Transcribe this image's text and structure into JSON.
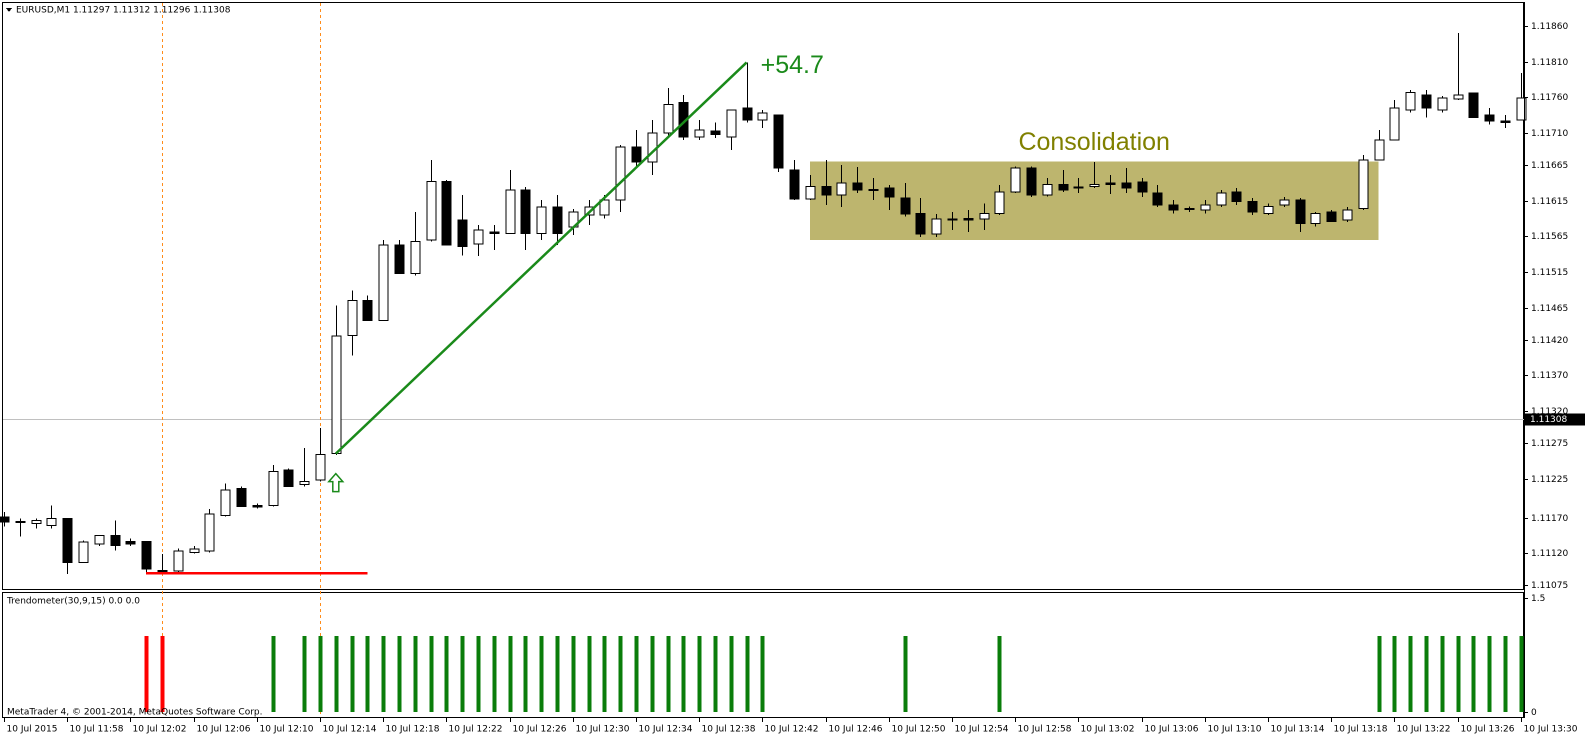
{
  "chart_data": [
    {
      "type": "candlestick",
      "title": "EURUSD,M1  1.11297 1.11312 1.11296 1.11308",
      "categories": [
        "10 Jul 2015",
        null,
        null,
        null,
        "10 Jul 11:58",
        null,
        null,
        null,
        "10 Jul 12:02",
        null,
        null,
        null,
        "10 Jul 12:06",
        null,
        null,
        null,
        "10 Jul 12:10",
        null,
        null,
        null,
        "10 Jul 12:14",
        null,
        null,
        null,
        "10 Jul 12:18",
        null,
        null,
        null,
        "10 Jul 12:22",
        null,
        null,
        null,
        "10 Jul 12:26",
        null,
        null,
        null,
        "10 Jul 12:30",
        null,
        null,
        null,
        "10 Jul 12:34",
        null,
        null,
        null,
        "10 Jul 12:38",
        null,
        null,
        null,
        "10 Jul 12:42",
        null,
        null,
        null,
        "10 Jul 12:46",
        null,
        null,
        null,
        "10 Jul 12:50",
        null,
        null,
        null,
        "10 Jul 12:54",
        null,
        null,
        null,
        "10 Jul 12:58",
        null,
        null,
        null,
        "10 Jul 13:02",
        null,
        null,
        null,
        "10 Jul 13:06",
        null,
        null,
        null,
        "10 Jul 13:10",
        null,
        null,
        null,
        "10 Jul 13:14",
        null,
        null,
        null,
        "10 Jul 13:18",
        null,
        null,
        null,
        "10 Jul 13:22",
        null,
        null,
        null,
        "10 Jul 13:26",
        null,
        null,
        null,
        "10 Jul 13:30"
      ],
      "open": [
        1.11171,
        1.11165,
        1.11162,
        1.11159,
        1.11169,
        1.11107,
        1.11133,
        1.11145,
        1.11137,
        1.11137,
        1.11096,
        1.11095,
        1.11121,
        1.11123,
        1.11173,
        1.11211,
        1.11187,
        1.11187,
        1.11237,
        1.11217,
        1.11223,
        1.1126,
        1.11426,
        1.11475,
        1.11447,
        1.11553,
        1.11513,
        1.1156,
        1.11642,
        1.11588,
        1.11554,
        1.11571,
        1.11569,
        1.1163,
        1.11569,
        1.11606,
        1.11578,
        1.11595,
        1.11595,
        1.11616,
        1.1169,
        1.11669,
        1.1171,
        1.11753,
        1.11704,
        1.11713,
        1.11704,
        1.11745,
        1.11728,
        1.11735,
        1.11658,
        1.11617,
        1.11635,
        1.11623,
        1.1164,
        1.11631,
        1.11633,
        1.11619,
        1.11597,
        1.11568,
        1.11589,
        1.1159,
        1.11589,
        1.11597,
        1.11627,
        1.11661,
        1.11623,
        1.11638,
        1.11634,
        1.11635,
        1.1164,
        1.1164,
        1.11641,
        1.11626,
        1.11609,
        1.11604,
        1.11602,
        1.11609,
        1.11627,
        1.11614,
        1.11597,
        1.11609,
        1.11616,
        1.11583,
        1.11599,
        1.11588,
        1.11604,
        1.11672,
        1.117,
        1.11742,
        1.11763,
        1.11742,
        1.11758,
        1.11766,
        1.11735,
        1.11727,
        1.11728
      ],
      "high": [
        1.11178,
        1.11169,
        1.11169,
        1.11187,
        1.11169,
        1.11138,
        1.11145,
        1.11166,
        1.11141,
        1.11137,
        1.11119,
        1.11127,
        1.1113,
        1.11182,
        1.11218,
        1.11214,
        1.1119,
        1.11244,
        1.11239,
        1.11268,
        1.11296,
        1.11468,
        1.11489,
        1.11482,
        1.1156,
        1.1156,
        1.11599,
        1.11672,
        1.11644,
        1.11623,
        1.11581,
        1.11581,
        1.11658,
        1.11634,
        1.11616,
        1.11623,
        1.11603,
        1.11616,
        1.11623,
        1.11693,
        1.11714,
        1.11728,
        1.11773,
        1.11763,
        1.11728,
        1.11725,
        1.11742,
        1.11809,
        1.11742,
        1.11735,
        1.11672,
        1.11651,
        1.11672,
        1.11665,
        1.11662,
        1.11647,
        1.11637,
        1.1164,
        1.11619,
        1.11596,
        1.11599,
        1.11602,
        1.11611,
        1.11637,
        1.11663,
        1.11663,
        1.11647,
        1.11658,
        1.11647,
        1.11669,
        1.11651,
        1.11661,
        1.11647,
        1.11637,
        1.11616,
        1.11607,
        1.11616,
        1.1163,
        1.11633,
        1.11619,
        1.11611,
        1.1162,
        1.11619,
        1.11599,
        1.11602,
        1.11606,
        1.11679,
        1.11714,
        1.11756,
        1.1177,
        1.1177,
        1.11762,
        1.1185,
        1.11767,
        1.11745,
        1.11735,
        1.11794
      ],
      "low": [
        1.11158,
        1.11144,
        1.11155,
        1.11155,
        1.11091,
        1.11107,
        1.1113,
        1.11124,
        1.1113,
        1.11093,
        1.11093,
        1.11093,
        1.1112,
        1.11121,
        1.11172,
        1.11185,
        1.11183,
        1.11186,
        1.11214,
        1.11214,
        1.11221,
        1.11258,
        1.11398,
        1.11447,
        1.11447,
        1.11512,
        1.1151,
        1.11558,
        1.11553,
        1.11538,
        1.11537,
        1.11546,
        1.11568,
        1.11546,
        1.1156,
        1.11553,
        1.11567,
        1.11581,
        1.1159,
        1.11599,
        1.11661,
        1.11651,
        1.11703,
        1.117,
        1.117,
        1.11703,
        1.11686,
        1.11725,
        1.11717,
        1.11655,
        1.11616,
        1.11616,
        1.11609,
        1.11606,
        1.11626,
        1.11616,
        1.11602,
        1.11593,
        1.11564,
        1.11564,
        1.11574,
        1.11571,
        1.11574,
        1.11595,
        1.11626,
        1.1162,
        1.11621,
        1.11627,
        1.11626,
        1.11633,
        1.11624,
        1.11626,
        1.1162,
        1.11606,
        1.11597,
        1.11599,
        1.11597,
        1.11606,
        1.11609,
        1.11595,
        1.11595,
        1.11606,
        1.11571,
        1.11579,
        1.11585,
        1.11585,
        1.11602,
        1.11672,
        1.117,
        1.11739,
        1.11732,
        1.11739,
        1.11756,
        1.11731,
        1.11722,
        1.11717,
        1.11728
      ],
      "close": [
        1.11164,
        1.11164,
        1.11166,
        1.11169,
        1.11107,
        1.11136,
        1.11145,
        1.11131,
        1.11133,
        1.11098,
        1.11095,
        1.11123,
        1.11126,
        1.11175,
        1.11209,
        1.11186,
        1.11185,
        1.11235,
        1.11214,
        1.11221,
        1.11259,
        1.11425,
        1.11475,
        1.11447,
        1.11553,
        1.11513,
        1.11558,
        1.11642,
        1.11553,
        1.11551,
        1.11574,
        1.11569,
        1.1163,
        1.11569,
        1.11606,
        1.11569,
        1.11599,
        1.11606,
        1.11616,
        1.1169,
        1.11669,
        1.1171,
        1.1175,
        1.11704,
        1.11714,
        1.11708,
        1.11742,
        1.11728,
        1.11738,
        1.11661,
        1.11617,
        1.11635,
        1.11623,
        1.1164,
        1.1163,
        1.1163,
        1.1162,
        1.11596,
        1.11568,
        1.11589,
        1.11588,
        1.11588,
        1.11597,
        1.11627,
        1.11661,
        1.11623,
        1.11638,
        1.1163,
        1.11633,
        1.11638,
        1.11638,
        1.11633,
        1.11627,
        1.11609,
        1.11602,
        1.11603,
        1.11609,
        1.11626,
        1.11614,
        1.11599,
        1.11607,
        1.11616,
        1.11583,
        1.11597,
        1.11586,
        1.11602,
        1.11672,
        1.117,
        1.11745,
        1.11767,
        1.11745,
        1.11759,
        1.11763,
        1.11732,
        1.11727,
        1.11725,
        1.11759
      ],
      "up_color": "#ffffff",
      "down_color": "#000000",
      "ylim": [
        1.1107,
        1.11891
      ],
      "yticks": [
        {
          "value": 1.1186,
          "label": "1.11860"
        },
        {
          "value": 1.1181,
          "label": "1.11810"
        },
        {
          "value": 1.1176,
          "label": "1.11760"
        },
        {
          "value": 1.1171,
          "label": "1.11710"
        },
        {
          "value": 1.11665,
          "label": "1.11665"
        },
        {
          "value": 1.11615,
          "label": "1.11615"
        },
        {
          "value": 1.11565,
          "label": "1.11565"
        },
        {
          "value": 1.11515,
          "label": "1.11515"
        },
        {
          "value": 1.11465,
          "label": "1.11465"
        },
        {
          "value": 1.1142,
          "label": "1.11420"
        },
        {
          "value": 1.1137,
          "label": "1.11370"
        },
        {
          "value": 1.1132,
          "label": "1.11320"
        },
        {
          "value": 1.11275,
          "label": "1.11275"
        },
        {
          "value": 1.11225,
          "label": "1.11225"
        },
        {
          "value": 1.1117,
          "label": "1.11170"
        },
        {
          "value": 1.1112,
          "label": "1.11120"
        },
        {
          "value": 1.11075,
          "label": "1.11075"
        }
      ],
      "current_price": 1.11308,
      "zone": {
        "x": [
          51,
          87
        ],
        "y": [
          1.1156,
          1.1167
        ],
        "color": "#bdb56e",
        "label": "Consolidation",
        "label_color": "#808000"
      },
      "trendline": {
        "x": [
          21,
          47
        ],
        "y": [
          1.1126,
          1.11809
        ],
        "color": "#1a8a1a",
        "label": "+54.7"
      },
      "support_line": {
        "x": [
          9,
          23
        ],
        "y": 1.11092,
        "color": "#ff0000"
      },
      "vlines": {
        "x": [
          10,
          20
        ],
        "color": "#ff8c1a"
      }
    },
    {
      "type": "bar",
      "title": "Trendometer(30,9,15) 0.0 0.0",
      "ylim": [
        0,
        1.5
      ],
      "yticks": [
        0,
        1.5
      ],
      "series": [
        {
          "color": "#ff0000",
          "values": [
            0,
            0,
            0,
            0,
            0,
            0,
            0,
            0,
            0,
            1,
            1,
            0,
            0,
            0,
            0,
            0,
            0,
            0,
            0,
            0,
            0,
            0,
            0,
            0,
            0,
            0,
            0,
            0,
            0,
            0,
            0,
            0,
            0,
            0,
            0,
            0,
            0,
            0,
            0,
            0,
            0,
            0,
            0,
            0,
            0,
            0,
            0,
            0,
            0,
            0,
            0,
            0,
            0,
            0,
            0,
            0,
            0,
            0,
            0,
            0,
            0,
            0,
            0,
            0,
            0,
            0,
            0,
            0,
            0,
            0,
            0,
            0,
            0,
            0,
            0,
            0,
            0,
            0,
            0,
            0,
            0,
            0,
            0,
            0,
            0,
            0,
            0,
            0,
            0,
            0,
            0,
            0,
            0,
            0,
            0,
            0,
            0
          ]
        },
        {
          "color": "#0a7d0a",
          "values": [
            0,
            0,
            0,
            0,
            0,
            0,
            0,
            0,
            0,
            0,
            0,
            0,
            0,
            0,
            0,
            0,
            0,
            1,
            0,
            1,
            1,
            1,
            1,
            1,
            1,
            1,
            1,
            1,
            1,
            1,
            1,
            1,
            1,
            1,
            1,
            1,
            1,
            1,
            1,
            1,
            1,
            1,
            1,
            1,
            1,
            1,
            1,
            1,
            1,
            0,
            0,
            0,
            0,
            0,
            0,
            0,
            0,
            1,
            0,
            0,
            0,
            0,
            0,
            1,
            0,
            0,
            0,
            0,
            0,
            0,
            0,
            0,
            0,
            0,
            0,
            0,
            0,
            0,
            0,
            0,
            0,
            0,
            0,
            0,
            0,
            0,
            0,
            1,
            1,
            1,
            1,
            1,
            1,
            1,
            1,
            1,
            1
          ]
        }
      ]
    }
  ],
  "footer": "MetaTrader 4, © 2001-2014, MetaQuotes Software Corp."
}
